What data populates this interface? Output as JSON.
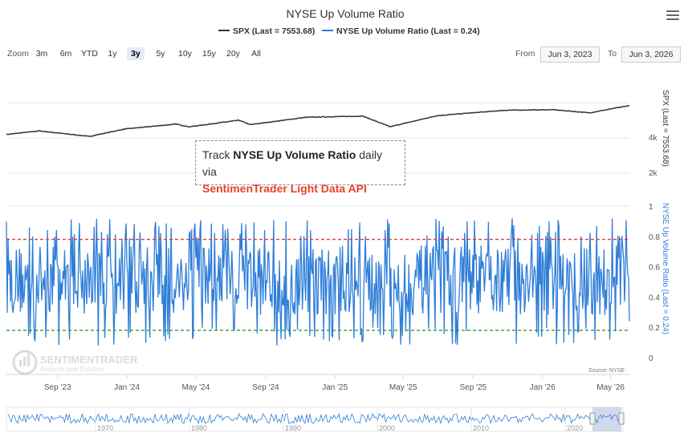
{
  "title": "NYSE Up Volume Ratio",
  "legend": [
    {
      "label": "SPX (Last = 7553.68)",
      "color": "#333333"
    },
    {
      "label": "NYSE Up Volume Ratio (Last = 0.24)",
      "color": "#2f7ed8"
    }
  ],
  "menu_icon": "hamburger-menu-icon",
  "range_selector": {
    "zoom_label": "Zoom",
    "buttons": [
      "3m",
      "6m",
      "YTD",
      "1y",
      "3y",
      "5y",
      "10y",
      "15y",
      "20y",
      "All"
    ],
    "active": "3y",
    "from_label": "From",
    "from_value": "Jun 3, 2023",
    "to_label": "To",
    "to_value": "Jun 3, 2026"
  },
  "promo": {
    "line1_prefix": "Track ",
    "line1_bold": "NYSE Up Volume Ratio",
    "line1_suffix": " daily via",
    "line2": "SentimenTrader Light Data API"
  },
  "watermark": {
    "brand": "SENTIMENTRADER",
    "tagline": "Analysis over Emotion"
  },
  "source": "Source: NYSE",
  "navigator_labels": [
    "1970",
    "1980",
    "1990",
    "2000",
    "2010",
    "2020"
  ],
  "chart_data": {
    "type": "line",
    "title": "NYSE Up Volume Ratio",
    "x_range": [
      "2023-06-03",
      "2026-06-03"
    ],
    "x_tick_labels": [
      "Sep '23",
      "Jan '24",
      "May '24",
      "Sep '24",
      "Jan '25",
      "May '25",
      "Sep '25",
      "Jan '26",
      "May '26"
    ],
    "panels": [
      {
        "name": "SPX",
        "axis_title": "SPX (Last = 7553.68)",
        "y_tick_labels": [
          "2k",
          "4k"
        ],
        "scale": "log",
        "last": 7553.68,
        "series_points": [
          {
            "date": "2023-06-03",
            "value": 4280
          },
          {
            "date": "2023-07-31",
            "value": 4590
          },
          {
            "date": "2023-10-27",
            "value": 4120
          },
          {
            "date": "2023-12-29",
            "value": 4770
          },
          {
            "date": "2024-03-28",
            "value": 5250
          },
          {
            "date": "2024-04-19",
            "value": 4970
          },
          {
            "date": "2024-07-16",
            "value": 5660
          },
          {
            "date": "2024-08-05",
            "value": 5190
          },
          {
            "date": "2024-11-11",
            "value": 6000
          },
          {
            "date": "2025-02-19",
            "value": 6140
          },
          {
            "date": "2025-04-08",
            "value": 4980
          },
          {
            "date": "2025-06-30",
            "value": 6200
          },
          {
            "date": "2025-10-28",
            "value": 6890
          },
          {
            "date": "2026-01-20",
            "value": 6960
          },
          {
            "date": "2026-03-25",
            "value": 6550
          },
          {
            "date": "2026-06-03",
            "value": 7553.68
          }
        ]
      },
      {
        "name": "NYSE Up Volume Ratio",
        "axis_title": "NYSE Up Volume Ratio (Last = 0.24)",
        "y_ticks": [
          0,
          0.2,
          0.4,
          0.6,
          0.8,
          1
        ],
        "ylim": [
          0,
          1
        ],
        "reference_lines": [
          {
            "value": 0.78,
            "color": "#e03a3a"
          },
          {
            "value": 0.18,
            "color": "#2ca02c"
          }
        ],
        "last": 0.24
      }
    ]
  }
}
